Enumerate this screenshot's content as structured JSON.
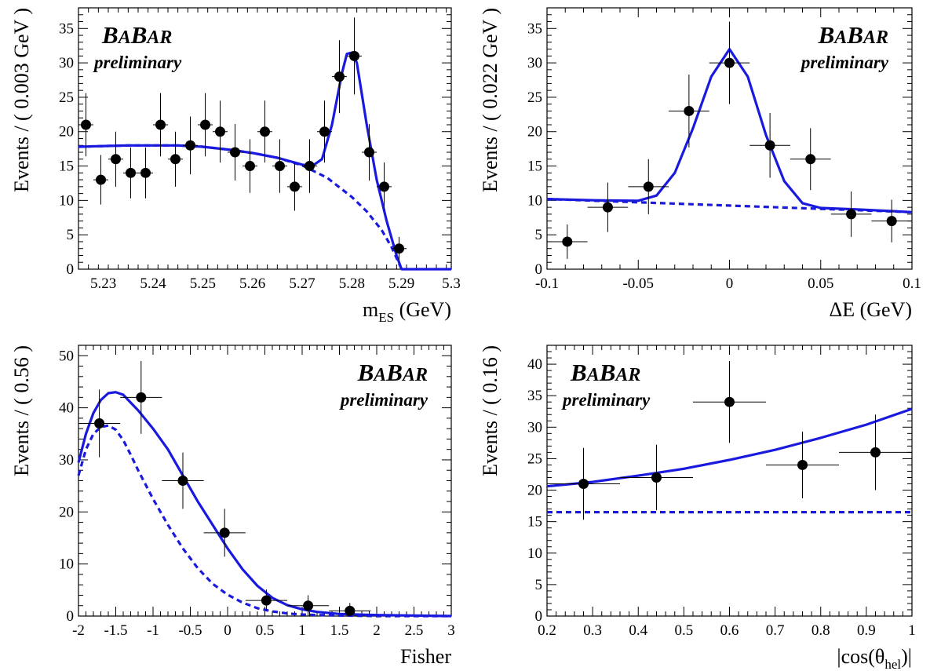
{
  "colors": {
    "fit": "#1a1adf",
    "points": "#000000",
    "frame": "#000000"
  },
  "chart_data": [
    {
      "type": "scatter",
      "xlabel": "m_ES (GeV)",
      "ylabel": "Events / ( 0.003 GeV )",
      "xlim": [
        5.225,
        5.3
      ],
      "ylim": [
        0,
        38
      ],
      "xticks": [
        5.23,
        5.24,
        5.25,
        5.26,
        5.27,
        5.28,
        5.29,
        5.3
      ],
      "xticklabels": [
        "5.23",
        "5.24",
        "5.25",
        "5.26",
        "5.27",
        "5.28",
        "5.29",
        "5.3"
      ],
      "yticks": [
        0,
        5,
        10,
        15,
        20,
        25,
        30,
        35
      ],
      "yticklabels": [
        "0",
        "5",
        "10",
        "15",
        "20",
        "25",
        "30",
        "35"
      ],
      "logo": {
        "main": "BABAR",
        "sub": "preliminary",
        "position": "top-left"
      },
      "series": [
        {
          "type": "errorbar",
          "x": [
            5.2265,
            5.2295,
            5.2325,
            5.2355,
            5.2385,
            5.2415,
            5.2445,
            5.2475,
            5.2505,
            5.2535,
            5.2565,
            5.2595,
            5.2625,
            5.2655,
            5.2685,
            5.2715,
            5.2745,
            5.2775,
            5.2805,
            5.2835,
            5.2865,
            5.2895
          ],
          "y": [
            21,
            13,
            16,
            14,
            14,
            21,
            16,
            18,
            21,
            20,
            17,
            15,
            20,
            15,
            12,
            15,
            20,
            28,
            31,
            17,
            12,
            3
          ],
          "xerr": 0.0015,
          "yerr": [
            4.6,
            3.6,
            4.0,
            3.7,
            3.7,
            4.6,
            4.0,
            4.2,
            4.6,
            4.5,
            4.1,
            3.9,
            4.5,
            3.9,
            3.5,
            3.9,
            4.5,
            5.3,
            5.6,
            4.1,
            3.5,
            1.7
          ]
        },
        {
          "type": "line",
          "style": "solid",
          "x": [
            5.225,
            5.23,
            5.235,
            5.24,
            5.245,
            5.25,
            5.255,
            5.26,
            5.265,
            5.27,
            5.272,
            5.274,
            5.276,
            5.278,
            5.279,
            5.28,
            5.281,
            5.283,
            5.285,
            5.287,
            5.289,
            5.29,
            5.3
          ],
          "y": [
            17.8,
            17.9,
            18,
            18,
            18,
            17.8,
            17.4,
            16.9,
            16.2,
            15.2,
            15,
            16,
            21,
            28.5,
            31.3,
            31.5,
            30,
            21,
            13,
            7,
            2,
            0,
            0
          ]
        },
        {
          "type": "line",
          "style": "dashed",
          "x": [
            5.225,
            5.23,
            5.235,
            5.24,
            5.245,
            5.25,
            5.255,
            5.26,
            5.265,
            5.27,
            5.275,
            5.28,
            5.283,
            5.286,
            5.288,
            5.29
          ],
          "y": [
            17.8,
            17.9,
            18,
            18,
            18,
            17.8,
            17.4,
            16.9,
            16.2,
            15.1,
            13.3,
            10.5,
            8.4,
            5.7,
            3.2,
            0
          ]
        }
      ]
    },
    {
      "type": "scatter",
      "xlabel": "ΔE (GeV)",
      "ylabel": "Events / ( 0.022 GeV )",
      "xlim": [
        -0.1,
        0.1
      ],
      "ylim": [
        0,
        38
      ],
      "xticks": [
        -0.1,
        -0.05,
        0,
        0.05,
        0.1
      ],
      "xticklabels": [
        "-0.1",
        "-0.05",
        "0",
        "0.05",
        "0.1"
      ],
      "yticks": [
        0,
        5,
        10,
        15,
        20,
        25,
        30,
        35
      ],
      "yticklabels": [
        "0",
        "5",
        "10",
        "15",
        "20",
        "25",
        "30",
        "35"
      ],
      "logo": {
        "main": "BABAR",
        "sub": "preliminary",
        "position": "top-right"
      },
      "series": [
        {
          "type": "errorbar",
          "x": [
            -0.0889,
            -0.0667,
            -0.0444,
            -0.0222,
            0,
            0.0222,
            0.0444,
            0.0667,
            0.0889
          ],
          "y": [
            4,
            9,
            12,
            23,
            30,
            18,
            16,
            8,
            7
          ],
          "xerr": 0.0111,
          "yerr": [
            2.5,
            3.6,
            4.0,
            5.3,
            6.0,
            4.7,
            4.5,
            3.3,
            3.1
          ]
        },
        {
          "type": "line",
          "style": "solid",
          "x": [
            -0.1,
            -0.07,
            -0.05,
            -0.04,
            -0.03,
            -0.02,
            -0.01,
            0,
            0.01,
            0.02,
            0.03,
            0.04,
            0.05,
            0.07,
            0.1
          ],
          "y": [
            10.2,
            10,
            9.95,
            10.7,
            14,
            20.5,
            28,
            32,
            28,
            19.5,
            12.8,
            9.6,
            8.9,
            8.7,
            8.3
          ]
        },
        {
          "type": "line",
          "style": "dashed",
          "x": [
            -0.1,
            0.1
          ],
          "y": [
            10.2,
            8.3
          ]
        }
      ]
    },
    {
      "type": "scatter",
      "xlabel": "Fisher",
      "ylabel": "Events / ( 0.56 )",
      "xlim": [
        -2,
        3
      ],
      "ylim": [
        0,
        52
      ],
      "xticks": [
        -2,
        -1.5,
        -1,
        -0.5,
        0,
        0.5,
        1,
        1.5,
        2,
        2.5,
        3
      ],
      "xticklabels": [
        "-2",
        "-1.5",
        "-1",
        "-0.5",
        "0",
        "0.5",
        "1",
        "1.5",
        "2",
        "2.5",
        "3"
      ],
      "yticks": [
        0,
        10,
        20,
        30,
        40,
        50
      ],
      "yticklabels": [
        "0",
        "10",
        "20",
        "30",
        "40",
        "50"
      ],
      "logo": {
        "main": "BABAR",
        "sub": "preliminary",
        "position": "top-right"
      },
      "series": [
        {
          "type": "errorbar",
          "x": [
            -1.72,
            -1.16,
            -0.6,
            -0.04,
            0.52,
            1.08,
            1.64
          ],
          "y": [
            37,
            42,
            26,
            16,
            3,
            2,
            1
          ],
          "xerr": 0.28,
          "yerr": [
            6.5,
            7.0,
            5.4,
            4.6,
            2.1,
            2.0,
            1.5
          ]
        },
        {
          "type": "line",
          "style": "solid",
          "x": [
            -2,
            -1.9,
            -1.8,
            -1.7,
            -1.6,
            -1.5,
            -1.4,
            -1.3,
            -1.2,
            -1,
            -0.8,
            -0.6,
            -0.4,
            -0.2,
            0,
            0.2,
            0.4,
            0.6,
            0.8,
            1,
            1.2,
            1.5,
            2,
            2.5,
            3
          ],
          "y": [
            29.5,
            35,
            39,
            41.5,
            42.8,
            43,
            42.5,
            41,
            39.5,
            36,
            32,
            27,
            22,
            17.5,
            13,
            9,
            5.8,
            3.5,
            2.1,
            1.3,
            0.8,
            0.4,
            0.2,
            0.1,
            0
          ]
        },
        {
          "type": "line",
          "style": "dashed",
          "x": [
            -2,
            -1.9,
            -1.8,
            -1.7,
            -1.6,
            -1.5,
            -1.4,
            -1.3,
            -1.2,
            -1,
            -0.8,
            -0.6,
            -0.4,
            -0.2,
            0,
            0.2,
            0.4,
            0.6,
            0.8,
            1,
            1.2,
            1.5,
            2,
            2.5,
            3
          ],
          "y": [
            27,
            32,
            35,
            36.3,
            36.6,
            35.8,
            33.8,
            31,
            28,
            22.5,
            17.5,
            13,
            9.2,
            6.2,
            4.1,
            2.6,
            1.5,
            0.9,
            0.5,
            0.3,
            0.2,
            0.1,
            0,
            0,
            0
          ]
        }
      ]
    },
    {
      "type": "scatter",
      "xlabel": "|cos(θ_hel)|",
      "ylabel": "Events / ( 0.16 )",
      "xlim": [
        0.2,
        1
      ],
      "ylim": [
        0,
        43
      ],
      "xticks": [
        0.2,
        0.3,
        0.4,
        0.5,
        0.6,
        0.7,
        0.8,
        0.9,
        1
      ],
      "xticklabels": [
        "0.2",
        "0.3",
        "0.4",
        "0.5",
        "0.6",
        "0.7",
        "0.8",
        "0.9",
        "1"
      ],
      "yticks": [
        0,
        5,
        10,
        15,
        20,
        25,
        30,
        35,
        40
      ],
      "yticklabels": [
        "0",
        "5",
        "10",
        "15",
        "20",
        "25",
        "30",
        "35",
        "40"
      ],
      "logo": {
        "main": "BABAR",
        "sub": "preliminary",
        "position": "top-left"
      },
      "series": [
        {
          "type": "errorbar",
          "x": [
            0.28,
            0.44,
            0.6,
            0.76,
            0.92
          ],
          "y": [
            21,
            22,
            34,
            24,
            26
          ],
          "xerr": 0.08,
          "yerr": [
            5.7,
            5.2,
            6.5,
            5.3,
            6.0
          ]
        },
        {
          "type": "line",
          "style": "solid",
          "x": [
            0.2,
            0.3,
            0.4,
            0.5,
            0.6,
            0.7,
            0.8,
            0.9,
            1
          ],
          "y": [
            20.6,
            21.3,
            22.3,
            23.4,
            24.8,
            26.4,
            28.3,
            30.4,
            32.9
          ]
        },
        {
          "type": "line",
          "style": "dashed",
          "x": [
            0.2,
            1
          ],
          "y": [
            16.5,
            16.5
          ]
        }
      ]
    }
  ]
}
